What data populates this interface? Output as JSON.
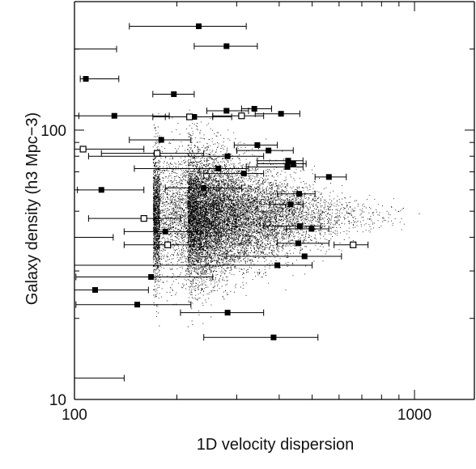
{
  "chart_data": {
    "type": "scatter",
    "xlabel": "1D velocity dispersion",
    "ylabel": "Galaxy density (h3 Mpc−3)",
    "xscale": "log",
    "yscale": "log",
    "xlim": [
      100,
      1500
    ],
    "ylim": [
      10,
      300
    ],
    "x_tick_labels": [
      "100",
      "1000"
    ],
    "y_tick_labels": [
      "10",
      "100"
    ],
    "grid": false,
    "legend": "none",
    "colors": {
      "points": "#000000",
      "axes": "#000000"
    },
    "cloud": {
      "description_kind": "dense point cloud",
      "x_center": 215,
      "x_spread_dex": 0.12,
      "x_min": 170,
      "x_max": 1100,
      "y_center": 48,
      "y_spread_dex": 0.12,
      "y_min": 15,
      "y_max": 120
    },
    "series": [
      {
        "marker": "filled-square",
        "points": [
          {
            "x": 232,
            "y": 243,
            "xmin": 145,
            "xmax": 320
          },
          {
            "x": 280,
            "y": 205,
            "xmin": 225,
            "xmax": 345
          },
          {
            "x": 108,
            "y": 155,
            "xmin": 104,
            "xmax": 135
          },
          {
            "x": 196,
            "y": 136,
            "xmin": 170,
            "xmax": 225
          },
          {
            "x": 280,
            "y": 118,
            "xmin": 245,
            "xmax": 325
          },
          {
            "x": 338,
            "y": 120,
            "xmin": 310,
            "xmax": 380
          },
          {
            "x": 131,
            "y": 113,
            "xmin": 100,
            "xmax": 190
          },
          {
            "x": 225,
            "y": 112,
            "xmin": 185,
            "xmax": 290
          },
          {
            "x": 405,
            "y": 115,
            "xmin": 340,
            "xmax": 460
          },
          {
            "x": 180,
            "y": 92,
            "xmin": 145,
            "xmax": 220
          },
          {
            "x": 345,
            "y": 88,
            "xmin": 295,
            "xmax": 395
          },
          {
            "x": 372,
            "y": 84,
            "xmin": 300,
            "xmax": 440
          },
          {
            "x": 282,
            "y": 80,
            "xmin": 110,
            "xmax": 360
          },
          {
            "x": 425,
            "y": 77,
            "xmin": 345,
            "xmax": 470
          },
          {
            "x": 440,
            "y": 75,
            "xmin": 345,
            "xmax": 480
          },
          {
            "x": 423,
            "y": 73,
            "xmin": 320,
            "xmax": 470
          },
          {
            "x": 265,
            "y": 72,
            "xmin": 150,
            "xmax": 325
          },
          {
            "x": 315,
            "y": 69,
            "xmin": 240,
            "xmax": 360
          },
          {
            "x": 560,
            "y": 67,
            "xmin": 510,
            "xmax": 630
          },
          {
            "x": 120,
            "y": 60,
            "xmin": 102,
            "xmax": 160
          },
          {
            "x": 240,
            "y": 61,
            "xmin": 185,
            "xmax": 310
          },
          {
            "x": 458,
            "y": 58,
            "xmin": 395,
            "xmax": 510
          },
          {
            "x": 432,
            "y": 53,
            "xmin": 375,
            "xmax": 470
          },
          {
            "x": 185,
            "y": 42,
            "xmin": 140,
            "xmax": 230
          },
          {
            "x": 460,
            "y": 44,
            "xmin": 360,
            "xmax": 530
          },
          {
            "x": 498,
            "y": 43,
            "xmin": 420,
            "xmax": 560
          },
          {
            "x": 455,
            "y": 38,
            "xmin": 395,
            "xmax": 560
          },
          {
            "x": 475,
            "y": 34,
            "xmin": 280,
            "xmax": 610
          },
          {
            "x": 395,
            "y": 31.5,
            "xmin": 100,
            "xmax": 500
          },
          {
            "x": 168,
            "y": 28.5,
            "xmin": 101,
            "xmax": 255
          },
          {
            "x": 115,
            "y": 25.5,
            "xmin": 100,
            "xmax": 165
          },
          {
            "x": 153,
            "y": 22.5,
            "xmin": 101,
            "xmax": 220
          },
          {
            "x": 282,
            "y": 21,
            "xmin": 205,
            "xmax": 360
          },
          {
            "x": 385,
            "y": 17,
            "xmin": 240,
            "xmax": 520
          }
        ]
      },
      {
        "marker": "open-square",
        "points": [
          {
            "x": 106,
            "y": 85,
            "xmin": 100,
            "xmax": 160
          },
          {
            "x": 175,
            "y": 82,
            "xmin": 120,
            "xmax": 240
          },
          {
            "x": 218,
            "y": 112,
            "xmin": 170,
            "xmax": 255
          },
          {
            "x": 310,
            "y": 113,
            "xmin": 255,
            "xmax": 360
          },
          {
            "x": 160,
            "y": 47,
            "xmin": 110,
            "xmax": 205
          },
          {
            "x": 188,
            "y": 37.5,
            "xmin": 140,
            "xmax": 225
          },
          {
            "x": 660,
            "y": 37.5,
            "xmin": 580,
            "xmax": 730
          }
        ]
      },
      {
        "marker": "bar-only",
        "points": [
          {
            "x": 100,
            "y": 200,
            "xmin": 100,
            "xmax": 133
          },
          {
            "x": 100,
            "y": 113,
            "xmin": 100,
            "xmax": 103
          },
          {
            "x": 100,
            "y": 40,
            "xmin": 100,
            "xmax": 130
          },
          {
            "x": 100,
            "y": 12,
            "xmin": 100,
            "xmax": 140
          }
        ]
      }
    ]
  }
}
